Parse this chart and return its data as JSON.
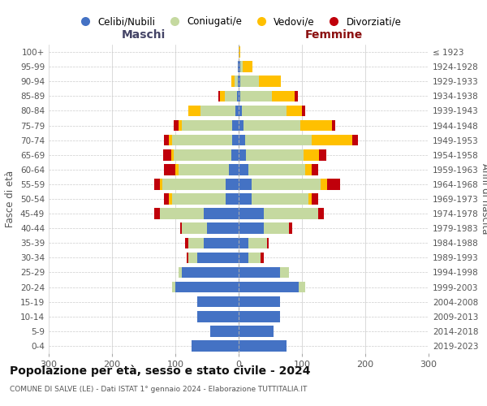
{
  "age_groups": [
    "0-4",
    "5-9",
    "10-14",
    "15-19",
    "20-24",
    "25-29",
    "30-34",
    "35-39",
    "40-44",
    "45-49",
    "50-54",
    "55-59",
    "60-64",
    "65-69",
    "70-74",
    "75-79",
    "80-84",
    "85-89",
    "90-94",
    "95-99",
    "100+"
  ],
  "birth_years": [
    "2019-2023",
    "2014-2018",
    "2009-2013",
    "2004-2008",
    "1999-2003",
    "1994-1998",
    "1989-1993",
    "1984-1988",
    "1979-1983",
    "1974-1978",
    "1969-1973",
    "1964-1968",
    "1959-1963",
    "1954-1958",
    "1949-1953",
    "1944-1948",
    "1939-1943",
    "1934-1938",
    "1929-1933",
    "1924-1928",
    "≤ 1923"
  ],
  "colors": {
    "celibi": "#4472c4",
    "coniugati": "#c5d9a0",
    "vedovi": "#ffc000",
    "divorziati": "#c0000b"
  },
  "maschi": {
    "celibi": [
      75,
      45,
      65,
      65,
      100,
      90,
      65,
      55,
      50,
      55,
      20,
      20,
      15,
      12,
      10,
      10,
      5,
      2,
      1,
      1,
      0
    ],
    "coniugati": [
      0,
      0,
      0,
      0,
      5,
      5,
      15,
      25,
      40,
      70,
      85,
      100,
      80,
      90,
      95,
      80,
      55,
      20,
      5,
      0,
      0
    ],
    "vedovi": [
      0,
      0,
      0,
      0,
      0,
      0,
      0,
      0,
      0,
      0,
      5,
      5,
      5,
      5,
      5,
      5,
      20,
      8,
      5,
      0,
      0
    ],
    "divorziati": [
      0,
      0,
      0,
      0,
      0,
      0,
      2,
      5,
      2,
      8,
      8,
      8,
      18,
      12,
      8,
      8,
      0,
      2,
      0,
      0,
      0
    ]
  },
  "femmine": {
    "celibi": [
      75,
      55,
      65,
      65,
      95,
      65,
      15,
      15,
      40,
      40,
      20,
      20,
      15,
      12,
      10,
      8,
      5,
      3,
      2,
      2,
      0
    ],
    "coniugati": [
      0,
      0,
      0,
      0,
      10,
      15,
      20,
      30,
      40,
      85,
      90,
      110,
      90,
      90,
      105,
      90,
      70,
      50,
      30,
      5,
      0
    ],
    "vedovi": [
      0,
      0,
      0,
      0,
      0,
      0,
      0,
      0,
      0,
      0,
      5,
      10,
      10,
      25,
      65,
      50,
      25,
      35,
      35,
      15,
      2
    ],
    "divorziati": [
      0,
      0,
      0,
      0,
      0,
      0,
      5,
      2,
      5,
      10,
      10,
      20,
      10,
      12,
      8,
      5,
      5,
      5,
      0,
      0,
      0
    ]
  },
  "xlim": 300,
  "title": "Popolazione per età, sesso e stato civile - 2024",
  "subtitle": "COMUNE DI SALVE (LE) - Dati ISTAT 1° gennaio 2024 - Elaborazione TUTTITALIA.IT",
  "xlabel_left": "Maschi",
  "xlabel_right": "Femmine",
  "ylabel_left": "Fasce di età",
  "ylabel_right": "Anni di nascita",
  "legend_labels": [
    "Celibi/Nubili",
    "Coniugati/e",
    "Vedovi/e",
    "Divorziati/e"
  ],
  "bg_color": "#ffffff",
  "grid_color": "#cccccc",
  "bar_height": 0.75,
  "maschi_label_color": "#555577",
  "femmine_label_color": "#8b1a1a"
}
